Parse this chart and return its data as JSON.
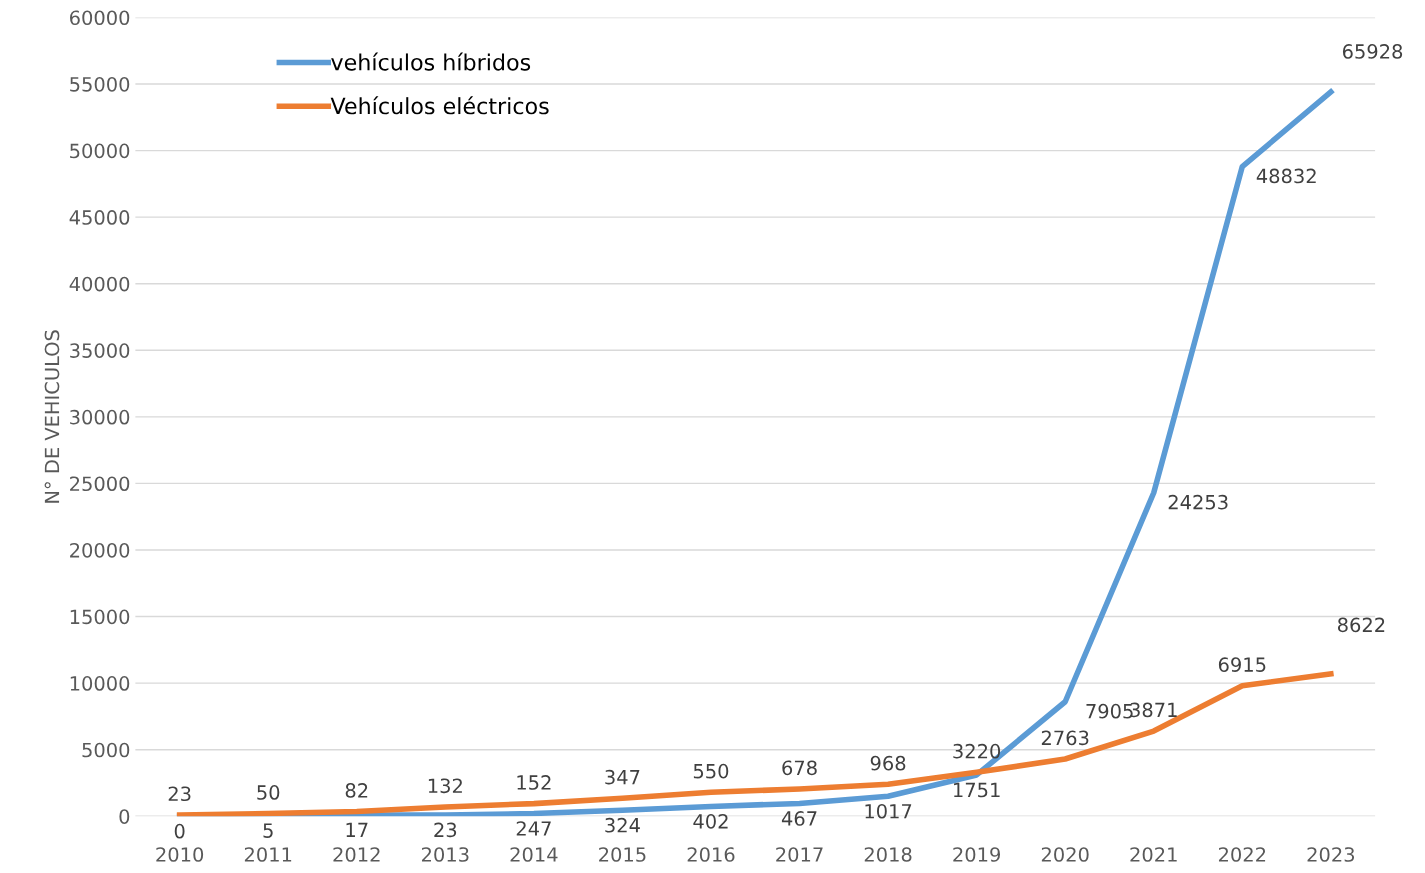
{
  "chart_data": {
    "type": "line",
    "ylabel": "N° DE VEHICULOS",
    "categories": [
      "2010",
      "2011",
      "2012",
      "2013",
      "2014",
      "2015",
      "2016",
      "2017",
      "2018",
      "2019",
      "2020",
      "2021",
      "2022",
      "2023"
    ],
    "series": [
      {
        "name": "vehículos híbridos",
        "color": "#5b9bd5",
        "values": [
          0,
          50,
          100,
          100,
          200,
          450,
          740,
          960,
          1500,
          3100,
          8600,
          24300,
          48800,
          54400
        ]
      },
      {
        "name": "Vehículos eléctricos",
        "color": "#ed7d31",
        "values": [
          100,
          200,
          350,
          700,
          950,
          1350,
          1800,
          2050,
          2400,
          3300,
          4300,
          6400,
          9800,
          10700
        ]
      }
    ],
    "annotations": [
      {
        "text": "0",
        "x": "2010",
        "y": 0
      },
      {
        "text": "5",
        "x": "2011",
        "y": 50
      },
      {
        "text": "17",
        "x": "2012",
        "y": 100
      },
      {
        "text": "23",
        "x": "2013",
        "y": 100
      },
      {
        "text": "247",
        "x": "2014",
        "y": 200
      },
      {
        "text": "324",
        "x": "2015",
        "y": 450
      },
      {
        "text": "402",
        "x": "2016",
        "y": 740
      },
      {
        "text": "467",
        "x": "2017",
        "y": 960
      },
      {
        "text": "1017",
        "x": "2018",
        "y": 1500
      },
      {
        "text": "1751",
        "x": "2019",
        "y": 3100
      },
      {
        "text": "7905",
        "x": "2020",
        "y": 8600
      },
      {
        "text": "24253",
        "x": "2021",
        "y": 24300
      },
      {
        "text": "48832",
        "x": "2022",
        "y": 48800
      },
      {
        "text": "65928",
        "x": "2023",
        "y": 54400
      },
      {
        "text": "23",
        "x": "2010",
        "y": 100
      },
      {
        "text": "50",
        "x": "2011",
        "y": 200
      },
      {
        "text": "82",
        "x": "2012",
        "y": 350
      },
      {
        "text": "132",
        "x": "2013",
        "y": 700
      },
      {
        "text": "152",
        "x": "2014",
        "y": 950
      },
      {
        "text": "347",
        "x": "2015",
        "y": 1350
      },
      {
        "text": "550",
        "x": "2016",
        "y": 1800
      },
      {
        "text": "678",
        "x": "2017",
        "y": 2050
      },
      {
        "text": "968",
        "x": "2018",
        "y": 2400
      },
      {
        "text": "3220",
        "x": "2019",
        "y": 3300
      },
      {
        "text": "2763",
        "x": "2020",
        "y": 4300
      },
      {
        "text": "3871",
        "x": "2021",
        "y": 6400
      },
      {
        "text": "6915",
        "x": "2022",
        "y": 9800
      },
      {
        "text": "8622",
        "x": "2023",
        "y": 10700
      }
    ],
    "ylim": [
      0,
      60000
    ],
    "yticks": [
      0,
      5000,
      10000,
      15000,
      20000,
      25000,
      30000,
      35000,
      40000,
      45000,
      50000,
      55000,
      60000
    ],
    "grid": "y",
    "legend": "top left",
    "marker": "none",
    "line_style": "solid"
  }
}
